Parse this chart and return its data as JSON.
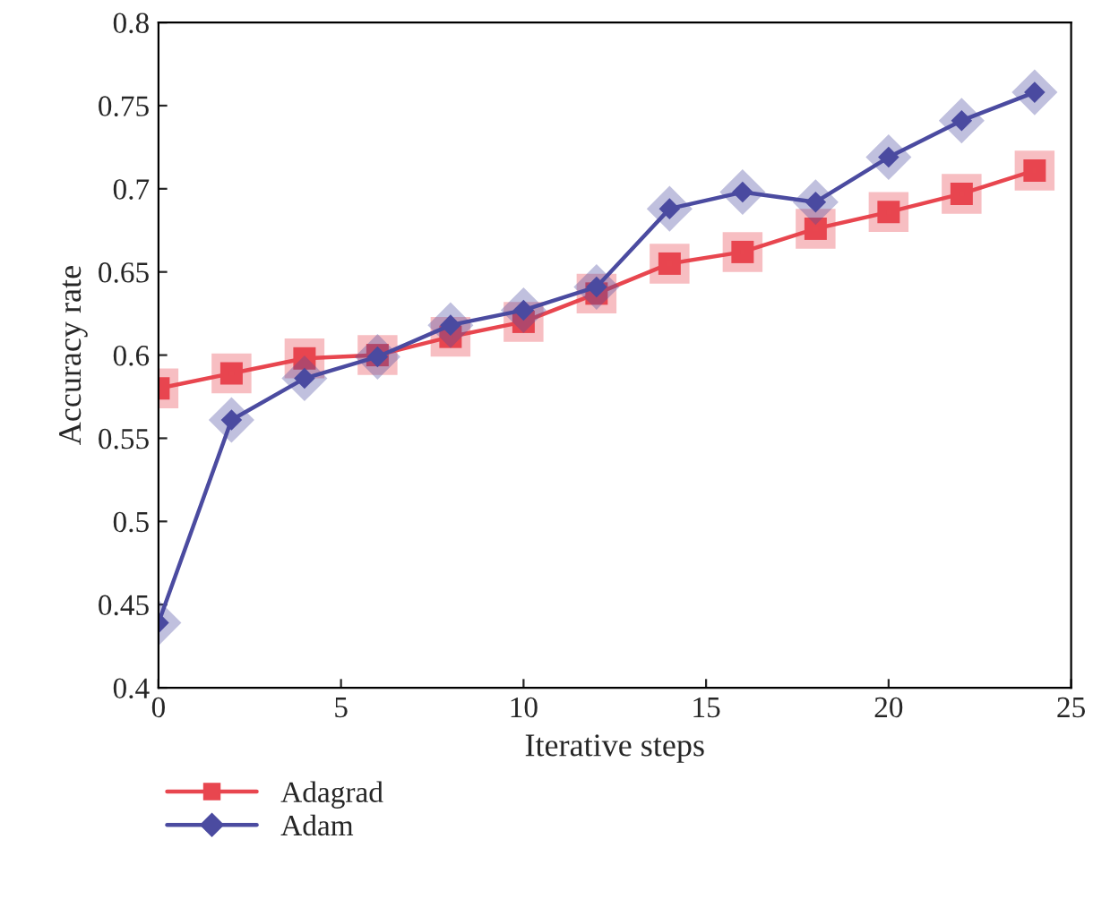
{
  "chart_data": {
    "type": "line",
    "xlabel": "Iterative steps",
    "ylabel": "Accuracy rate",
    "x": [
      0,
      2,
      4,
      6,
      8,
      10,
      12,
      14,
      16,
      18,
      20,
      22,
      24
    ],
    "series": [
      {
        "name": "Adagrad",
        "color": "#e8464f",
        "marker": "square",
        "values": [
          0.58,
          0.589,
          0.598,
          0.6,
          0.611,
          0.62,
          0.637,
          0.655,
          0.662,
          0.676,
          0.686,
          0.697,
          0.711
        ]
      },
      {
        "name": "Adam",
        "color": "#4b4ba0",
        "marker": "diamond",
        "values": [
          0.439,
          0.561,
          0.586,
          0.599,
          0.618,
          0.627,
          0.641,
          0.688,
          0.698,
          0.692,
          0.719,
          0.741,
          0.758
        ]
      }
    ],
    "xlim": [
      0,
      25
    ],
    "xticks": [
      0,
      5,
      10,
      15,
      20,
      25
    ],
    "ylim": [
      0.4,
      0.8
    ],
    "yticks": [
      0.4,
      0.45,
      0.5,
      0.55,
      0.6,
      0.65,
      0.7,
      0.75,
      0.8
    ],
    "grid": false,
    "legend": "bottom left",
    "line_style": "solid"
  }
}
